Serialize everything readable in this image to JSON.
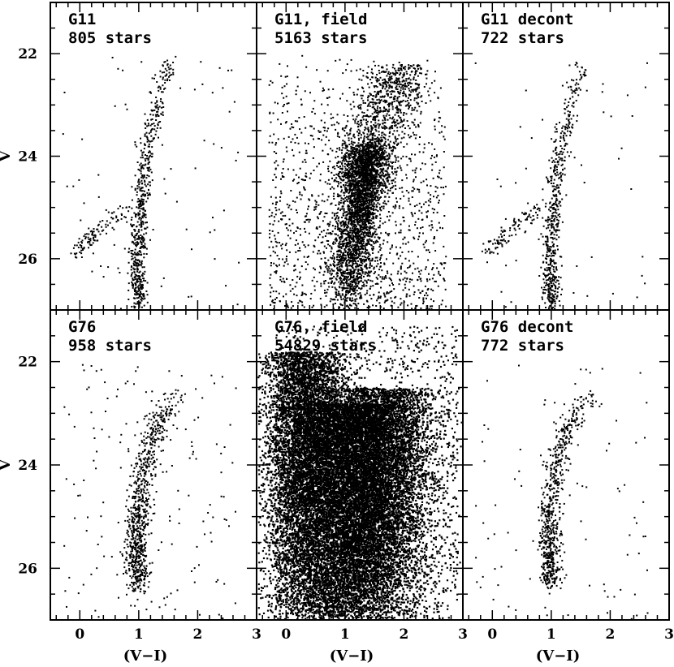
{
  "chart_data": [
    {
      "type": "scatter",
      "panel": "top-left",
      "label_line1": "G11",
      "label_line2": "805 stars",
      "xlabel": "",
      "ylabel": "V",
      "xlim": [
        -0.5,
        3
      ],
      "ylim": [
        27,
        21
      ],
      "x_ticks": [
        0,
        1,
        2,
        3
      ],
      "y_ticks": [
        22,
        24,
        26
      ],
      "n_points": 805,
      "sequences": [
        {
          "name": "main sequence / RGB",
          "points": [
            [
              1.0,
              26.8
            ],
            [
              0.97,
              26.0
            ],
            [
              1.0,
              25.2
            ],
            [
              1.05,
              24.5
            ],
            [
              1.15,
              23.8
            ],
            [
              1.3,
              23.0
            ],
            [
              1.45,
              22.2
            ]
          ]
        },
        {
          "name": "blue horizontal branch",
          "points": [
            [
              -0.05,
              25.8
            ],
            [
              0.2,
              25.55
            ],
            [
              0.45,
              25.2
            ],
            [
              0.75,
              25.0
            ]
          ]
        }
      ]
    },
    {
      "type": "scatter",
      "panel": "top-middle",
      "label_line1": "G11, field",
      "label_line2": "5163 stars",
      "xlabel": "",
      "ylabel": "",
      "xlim": [
        -0.5,
        3
      ],
      "ylim": [
        27,
        21
      ],
      "x_ticks": [
        0,
        1,
        2,
        3
      ],
      "y_ticks": [
        22,
        24,
        26
      ],
      "n_points": 5163
    },
    {
      "type": "scatter",
      "panel": "top-right",
      "label_line1": "G11 decont",
      "label_line2": "722 stars",
      "xlabel": "",
      "ylabel": "",
      "xlim": [
        -0.5,
        3
      ],
      "ylim": [
        27,
        21
      ],
      "x_ticks": [
        0,
        1,
        2,
        3
      ],
      "y_ticks": [
        22,
        24,
        26
      ],
      "n_points": 722
    },
    {
      "type": "scatter",
      "panel": "bottom-left",
      "label_line1": "G76",
      "label_line2": "958 stars",
      "xlabel": "(V−I)",
      "ylabel": "V",
      "xlim": [
        -0.5,
        3
      ],
      "ylim": [
        27,
        21
      ],
      "x_ticks": [
        0,
        1,
        2,
        3
      ],
      "y_ticks": [
        22,
        24,
        26
      ],
      "n_points": 958,
      "sequences": [
        {
          "name": "main sequence / RGB",
          "points": [
            [
              1.0,
              26.2
            ],
            [
              0.95,
              25.4
            ],
            [
              1.0,
              24.6
            ],
            [
              1.1,
              23.8
            ],
            [
              1.3,
              23.1
            ],
            [
              1.55,
              22.7
            ],
            [
              1.85,
              22.6
            ]
          ]
        }
      ]
    },
    {
      "type": "scatter",
      "panel": "bottom-middle",
      "label_line1": "G76, field",
      "label_line2": "54829 stars",
      "xlabel": "(V−I)",
      "ylabel": "",
      "xlim": [
        -0.5,
        3
      ],
      "ylim": [
        27,
        21
      ],
      "x_ticks": [
        0,
        1,
        2,
        3
      ],
      "y_ticks": [
        22,
        24,
        26
      ],
      "n_points": 54829
    },
    {
      "type": "scatter",
      "panel": "bottom-right",
      "label_line1": "G76 decont",
      "label_line2": "772 stars",
      "xlabel": "(V−I)",
      "ylabel": "",
      "xlim": [
        -0.5,
        3
      ],
      "ylim": [
        27,
        21
      ],
      "x_ticks": [
        0,
        1,
        2,
        3
      ],
      "y_ticks": [
        22,
        24,
        26
      ],
      "n_points": 772
    }
  ],
  "colors": {
    "points": "#000000",
    "frame": "#000000",
    "background": "#ffffff"
  }
}
